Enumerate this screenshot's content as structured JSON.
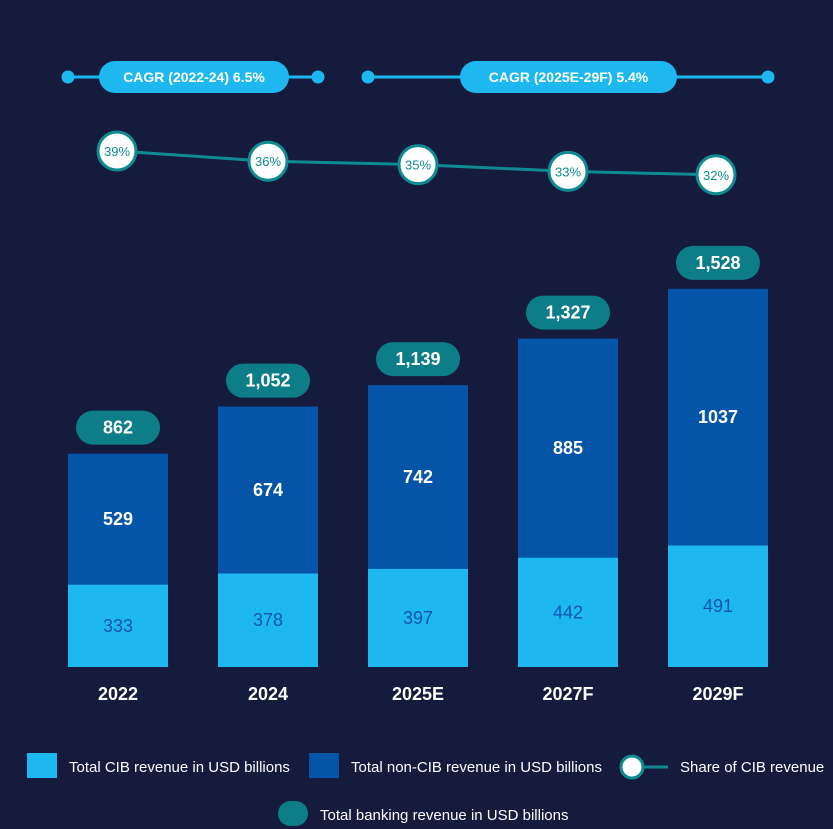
{
  "chart_data": {
    "type": "bar",
    "stacked": true,
    "categories": [
      "2022",
      "2024",
      "2025E",
      "2027F",
      "2029F"
    ],
    "series": [
      {
        "name": "Total CIB revenue in USD billions",
        "values": [
          333,
          378,
          397,
          442,
          491
        ],
        "color": "#1eb8f0"
      },
      {
        "name": "Total non-CIB revenue in USD billions",
        "values": [
          529,
          674,
          742,
          885,
          1037
        ],
        "color": "#0454a8"
      }
    ],
    "totals": {
      "name": "Total banking revenue in USD billions",
      "labels": [
        "862",
        "1,052",
        "1,139",
        "1,327",
        "1,528"
      ],
      "color": "#0d7d88"
    },
    "share_line": {
      "name": "Share of CIB revenue",
      "labels": [
        "39%",
        "36%",
        "35%",
        "33%",
        "32%"
      ],
      "values": [
        39,
        36,
        35,
        33,
        32
      ],
      "color": "#0f8a93"
    },
    "cagr": [
      {
        "label": "CAGR (2022-24) 6.5%",
        "from": "2022",
        "to": "2024"
      },
      {
        "label": "CAGR (2025E-29F) 5.4%",
        "from": "2025E",
        "to": "2029F"
      }
    ],
    "ylim": [
      0,
      1600
    ],
    "grid": false,
    "legend_position": "bottom"
  },
  "colors": {
    "background": "#141b3c",
    "cagr_pill": "#1eb8f0",
    "cib_label": "#0d55b0",
    "text": "#ffffff"
  }
}
